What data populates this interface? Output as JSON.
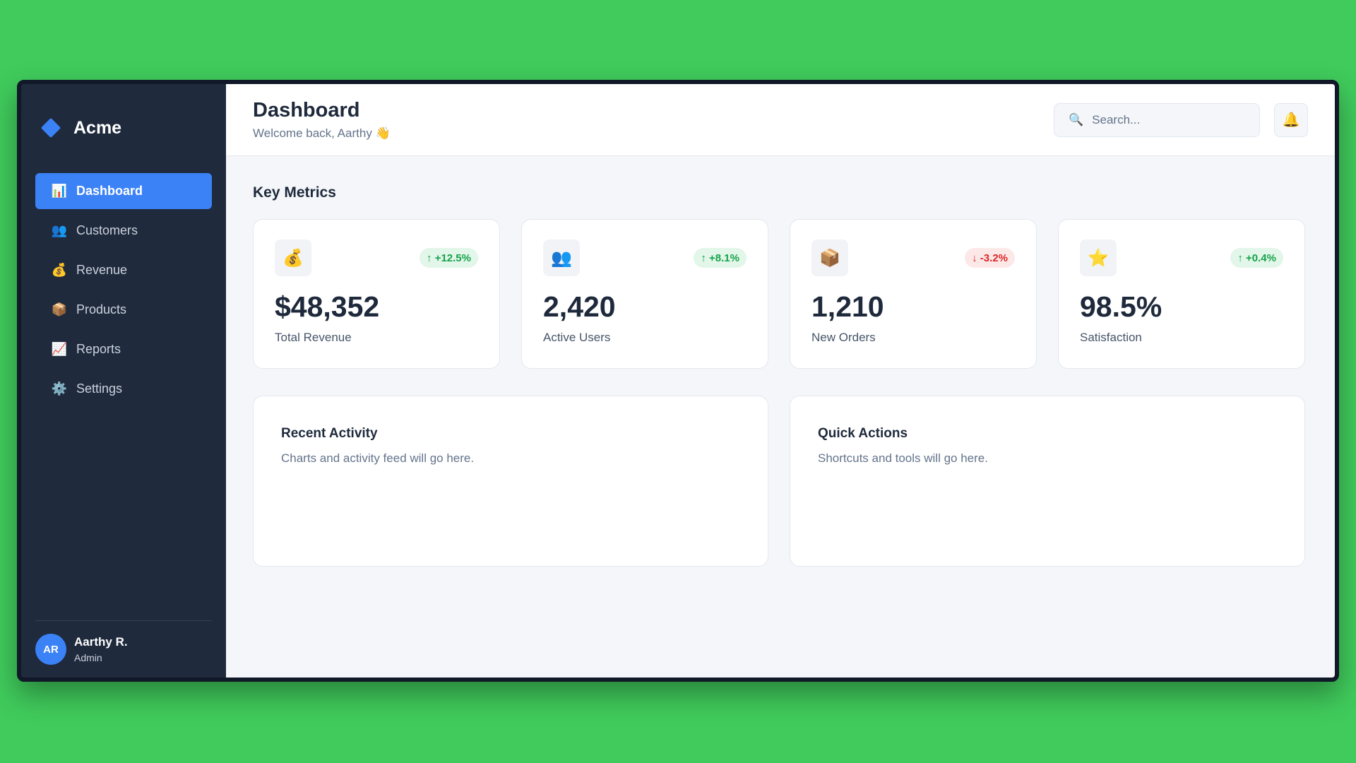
{
  "colors": {
    "background": "#40cb5c",
    "sidebar": "#1f2a3d",
    "accent": "#3b82f6",
    "positive": "#16a34a",
    "negative": "#dc2626"
  },
  "brand": {
    "name": "Acme"
  },
  "sidebar": {
    "items": [
      {
        "label": "Dashboard",
        "icon": "📊",
        "icon_name": "bar-chart-icon",
        "active": true
      },
      {
        "label": "Customers",
        "icon": "👥",
        "icon_name": "users-icon",
        "active": false
      },
      {
        "label": "Revenue",
        "icon": "💰",
        "icon_name": "money-bag-icon",
        "active": false
      },
      {
        "label": "Products",
        "icon": "📦",
        "icon_name": "package-icon",
        "active": false
      },
      {
        "label": "Reports",
        "icon": "📈",
        "icon_name": "trend-chart-icon",
        "active": false
      },
      {
        "label": "Settings",
        "icon": "⚙️",
        "icon_name": "gear-icon",
        "active": false
      }
    ]
  },
  "user": {
    "initials": "AR",
    "name": "Aarthy R.",
    "role": "Admin"
  },
  "header": {
    "title": "Dashboard",
    "subtitle": "Welcome back, Aarthy 👋",
    "search_placeholder": "Search...",
    "search_icon": "🔍",
    "bell_icon": "🔔"
  },
  "metrics_section": {
    "title": "Key Metrics"
  },
  "metrics": [
    {
      "icon": "💰",
      "icon_name": "money-bag-icon",
      "trend": "↑ +12.5%",
      "direction": "up",
      "value": "$48,352",
      "label": "Total Revenue"
    },
    {
      "icon": "👥",
      "icon_name": "users-icon",
      "trend": "↑ +8.1%",
      "direction": "up",
      "value": "2,420",
      "label": "Active Users"
    },
    {
      "icon": "📦",
      "icon_name": "package-icon",
      "trend": "↓ -3.2%",
      "direction": "down",
      "value": "1,210",
      "label": "New Orders"
    },
    {
      "icon": "⭐",
      "icon_name": "star-icon",
      "trend": "↑ +0.4%",
      "direction": "up",
      "value": "98.5%",
      "label": "Satisfaction"
    }
  ],
  "panels": [
    {
      "title": "Recent Activity",
      "text": "Charts and activity feed will go here."
    },
    {
      "title": "Quick Actions",
      "text": "Shortcuts and tools will go here."
    }
  ]
}
